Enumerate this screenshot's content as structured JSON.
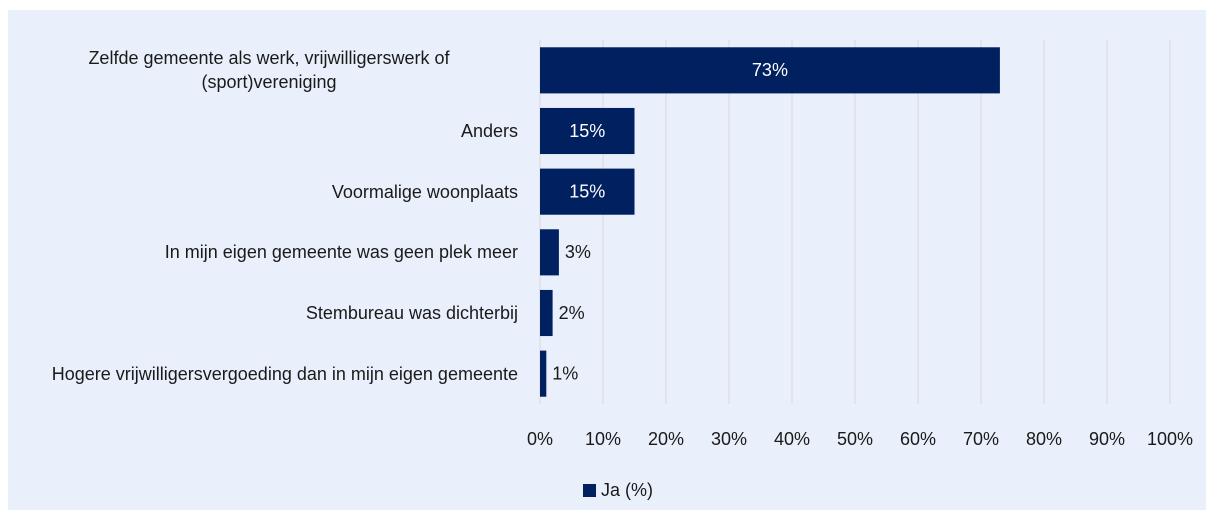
{
  "chart_data": {
    "type": "bar",
    "orientation": "horizontal",
    "categories": [
      "Zelfde gemeente als werk, vrijwilligerswerk of (sport)vereniging",
      "Anders",
      "Voormalige woonplaats",
      "In mijn eigen gemeente was geen plek meer",
      "Stembureau was dichterbij",
      "Hogere vrijwilligersvergoeding dan in mijn eigen gemeente"
    ],
    "series": [
      {
        "name": "Ja (%)",
        "color": "#002060",
        "values": [
          73,
          15,
          15,
          3,
          2,
          1
        ],
        "value_labels": [
          "73%",
          "15%",
          "15%",
          "3%",
          "2%",
          "1%"
        ]
      }
    ],
    "xlim": [
      0,
      100
    ],
    "xticks": [
      {
        "value": 0,
        "label": "0%"
      },
      {
        "value": 10,
        "label": "10%"
      },
      {
        "value": 20,
        "label": "20%"
      },
      {
        "value": 30,
        "label": "30%"
      },
      {
        "value": 40,
        "label": "40%"
      },
      {
        "value": 50,
        "label": "50%"
      },
      {
        "value": 60,
        "label": "60%"
      },
      {
        "value": 70,
        "label": "70%"
      },
      {
        "value": 80,
        "label": "80%"
      },
      {
        "value": 90,
        "label": "90%"
      },
      {
        "value": 100,
        "label": "100%"
      }
    ],
    "grid": true,
    "legend": "bottom"
  }
}
